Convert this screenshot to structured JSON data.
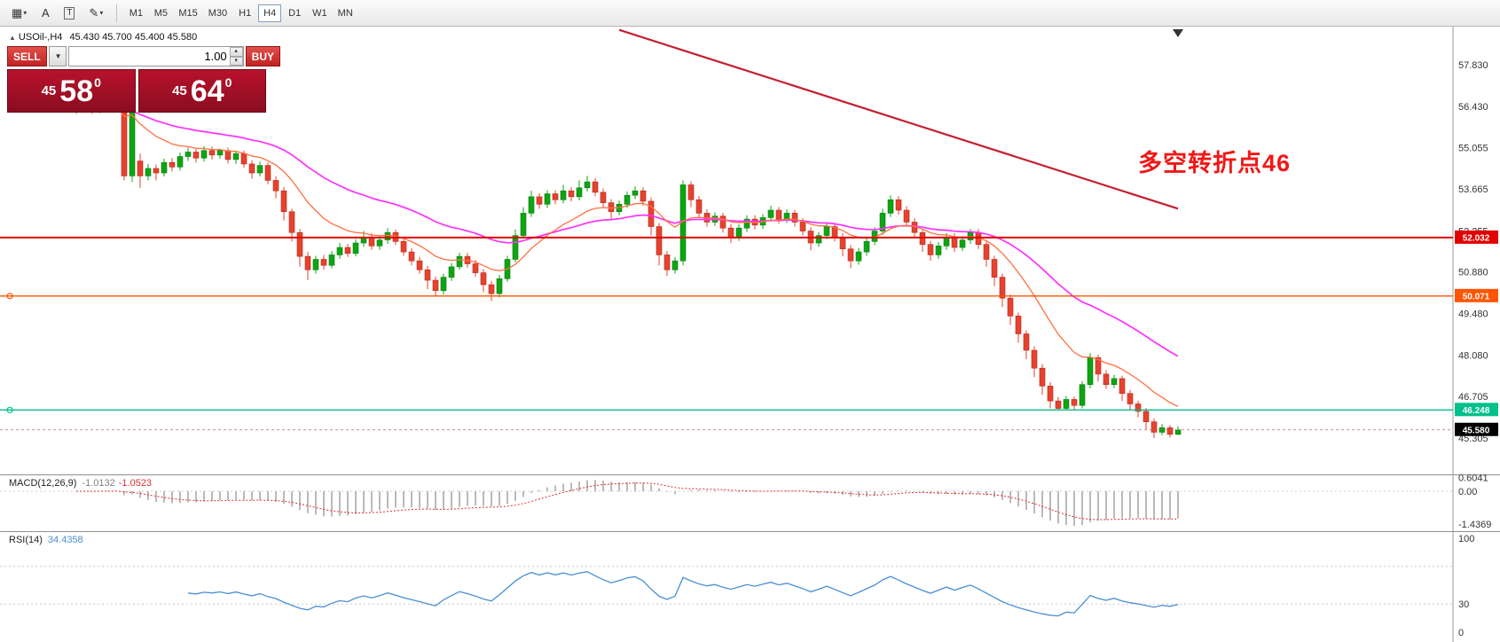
{
  "toolbar": {
    "icons": {
      "grid": "▦",
      "caret": "▾",
      "a": "A",
      "t": "T",
      "pencil": "✎"
    },
    "timeframes": [
      "M1",
      "M5",
      "M15",
      "M30",
      "H1",
      "H4",
      "D1",
      "W1",
      "MN"
    ],
    "active": "H4"
  },
  "trade": {
    "sell": "SELL",
    "buy": "BUY",
    "volume": "1.00",
    "caret_down": "▼",
    "spin_up": "▴",
    "spin_down": "▾",
    "sell_small": "45",
    "sell_big": "58",
    "sell_sup": "0",
    "buy_small": "45",
    "buy_big": "64",
    "buy_sup": "0"
  },
  "chart": {
    "symbol": "USOil-,H4",
    "ohlc": "45.430 45.700 45.400 45.580",
    "marker": "▲",
    "annotation": {
      "text": "多空转折点46",
      "color": "#f01818"
    },
    "axis_ticks": [
      "57.830",
      "56.430",
      "55.055",
      "53.665",
      "52.255",
      "50.880",
      "49.480",
      "48.080",
      "46.705",
      "45.305"
    ],
    "hlines": [
      {
        "price": 52.032,
        "label": "52.032",
        "color": "#e00000",
        "width": 2,
        "marker": false
      },
      {
        "price": 50.071,
        "label": "50.071",
        "color": "#ff5500",
        "width": 1.4,
        "marker": true
      },
      {
        "price": 46.248,
        "label": "46.248",
        "color": "#00c08b",
        "width": 1.4,
        "marker": true
      }
    ],
    "bid": {
      "price": 45.58,
      "label": "45.580",
      "bg": "#000000"
    },
    "trendline": {
      "from_index": 68,
      "from_price": 59.0,
      "to_index": 138,
      "to_price": 53.0,
      "color": "#c41f30"
    },
    "ma_fast": {
      "period": 13,
      "color": "#ff7040"
    },
    "ma_slow": {
      "period": 34,
      "color": "#ff30ff"
    },
    "up_color": "#0da512",
    "down_color": "#e6422e",
    "candles": [
      [
        56.3,
        56.55,
        56.18,
        56.4
      ],
      [
        56.4,
        56.65,
        56.28,
        56.52
      ],
      [
        56.52,
        56.6,
        56.18,
        56.3
      ],
      [
        56.3,
        56.58,
        56.2,
        56.45
      ],
      [
        56.45,
        56.75,
        56.32,
        56.62
      ],
      [
        56.62,
        56.9,
        56.25,
        56.38
      ],
      [
        56.38,
        56.5,
        53.95,
        54.1
      ],
      [
        54.1,
        56.45,
        53.9,
        56.35
      ],
      [
        54.6,
        54.85,
        53.7,
        54.1
      ],
      [
        54.1,
        54.5,
        53.95,
        54.35
      ],
      [
        54.35,
        54.48,
        53.95,
        54.2
      ],
      [
        54.2,
        54.68,
        54.08,
        54.55
      ],
      [
        54.55,
        54.7,
        54.25,
        54.4
      ],
      [
        54.4,
        54.88,
        54.28,
        54.75
      ],
      [
        54.75,
        55.05,
        54.6,
        54.9
      ],
      [
        54.9,
        55.0,
        54.55,
        54.7
      ],
      [
        54.7,
        55.1,
        54.58,
        54.95
      ],
      [
        54.95,
        55.08,
        54.65,
        54.8
      ],
      [
        54.8,
        55.02,
        54.68,
        54.95
      ],
      [
        54.95,
        55.05,
        54.52,
        54.65
      ],
      [
        54.65,
        54.95,
        54.5,
        54.85
      ],
      [
        54.85,
        54.95,
        54.38,
        54.5
      ],
      [
        54.5,
        54.62,
        54.0,
        54.2
      ],
      [
        54.2,
        54.58,
        54.08,
        54.45
      ],
      [
        54.45,
        54.55,
        53.82,
        53.95
      ],
      [
        53.95,
        54.08,
        53.35,
        53.6
      ],
      [
        53.6,
        53.72,
        52.6,
        52.9
      ],
      [
        52.9,
        53.0,
        51.9,
        52.2
      ],
      [
        52.2,
        52.32,
        51.05,
        51.4
      ],
      [
        51.4,
        51.55,
        50.6,
        50.95
      ],
      [
        50.95,
        51.42,
        50.82,
        51.3
      ],
      [
        51.3,
        51.45,
        50.95,
        51.1
      ],
      [
        51.1,
        51.58,
        51.0,
        51.45
      ],
      [
        51.45,
        51.85,
        51.32,
        51.7
      ],
      [
        51.7,
        51.82,
        51.38,
        51.5
      ],
      [
        51.5,
        51.98,
        51.4,
        51.85
      ],
      [
        51.85,
        52.25,
        51.72,
        52.05
      ],
      [
        52.05,
        52.18,
        51.62,
        51.75
      ],
      [
        51.75,
        52.08,
        51.62,
        51.95
      ],
      [
        51.95,
        52.35,
        51.82,
        52.2
      ],
      [
        52.2,
        52.3,
        51.78,
        51.9
      ],
      [
        51.9,
        52.02,
        51.42,
        51.55
      ],
      [
        51.55,
        51.68,
        51.1,
        51.25
      ],
      [
        51.25,
        51.38,
        50.82,
        50.95
      ],
      [
        50.95,
        51.08,
        50.3,
        50.6
      ],
      [
        50.6,
        50.72,
        50.05,
        50.25
      ],
      [
        50.25,
        50.82,
        50.12,
        50.7
      ],
      [
        50.7,
        51.18,
        50.58,
        51.05
      ],
      [
        51.05,
        51.52,
        50.95,
        51.4
      ],
      [
        51.4,
        51.52,
        51.02,
        51.15
      ],
      [
        51.15,
        51.28,
        50.72,
        50.85
      ],
      [
        50.85,
        50.98,
        50.2,
        50.45
      ],
      [
        50.45,
        50.58,
        49.9,
        50.15
      ],
      [
        50.15,
        50.78,
        50.02,
        50.65
      ],
      [
        50.65,
        51.42,
        50.55,
        51.3
      ],
      [
        51.3,
        52.3,
        51.2,
        52.1
      ],
      [
        52.1,
        53.05,
        52.0,
        52.85
      ],
      [
        52.85,
        53.6,
        52.72,
        53.4
      ],
      [
        53.4,
        53.52,
        53.0,
        53.15
      ],
      [
        53.15,
        53.62,
        53.02,
        53.5
      ],
      [
        53.5,
        53.62,
        53.15,
        53.3
      ],
      [
        53.3,
        53.8,
        53.18,
        53.6
      ],
      [
        53.6,
        53.72,
        53.25,
        53.4
      ],
      [
        53.4,
        53.95,
        53.28,
        53.7
      ],
      [
        53.7,
        54.1,
        53.58,
        53.9
      ],
      [
        53.9,
        54.02,
        53.42,
        53.55
      ],
      [
        53.55,
        53.68,
        53.05,
        53.2
      ],
      [
        53.2,
        53.32,
        52.65,
        52.9
      ],
      [
        52.9,
        53.28,
        52.78,
        53.15
      ],
      [
        53.15,
        53.58,
        53.02,
        53.45
      ],
      [
        53.45,
        53.75,
        53.32,
        53.6
      ],
      [
        53.6,
        53.72,
        53.1,
        53.25
      ],
      [
        53.25,
        53.38,
        52.1,
        52.4
      ],
      [
        52.4,
        52.52,
        51.1,
        51.45
      ],
      [
        51.45,
        51.58,
        50.75,
        50.95
      ],
      [
        50.95,
        51.38,
        50.82,
        51.25
      ],
      [
        51.25,
        53.95,
        51.1,
        53.8
      ],
      [
        53.8,
        53.92,
        53.05,
        53.3
      ],
      [
        53.3,
        53.42,
        52.7,
        52.85
      ],
      [
        52.85,
        52.98,
        52.4,
        52.55
      ],
      [
        52.55,
        52.88,
        52.42,
        52.75
      ],
      [
        52.75,
        52.86,
        52.2,
        52.35
      ],
      [
        52.35,
        52.48,
        51.85,
        52.05
      ],
      [
        52.05,
        52.48,
        51.92,
        52.35
      ],
      [
        52.35,
        52.78,
        52.22,
        52.65
      ],
      [
        52.65,
        52.78,
        52.3,
        52.45
      ],
      [
        52.45,
        52.82,
        52.32,
        52.7
      ],
      [
        52.7,
        53.1,
        52.58,
        52.95
      ],
      [
        52.95,
        53.06,
        52.5,
        52.65
      ],
      [
        52.65,
        52.98,
        52.52,
        52.85
      ],
      [
        52.85,
        52.96,
        52.4,
        52.55
      ],
      [
        52.55,
        52.68,
        52.1,
        52.25
      ],
      [
        52.25,
        52.38,
        51.6,
        51.85
      ],
      [
        51.85,
        52.22,
        51.72,
        52.1
      ],
      [
        52.1,
        52.52,
        51.98,
        52.4
      ],
      [
        52.4,
        52.52,
        51.9,
        52.05
      ],
      [
        52.05,
        52.18,
        51.4,
        51.65
      ],
      [
        51.65,
        51.78,
        51.0,
        51.25
      ],
      [
        51.25,
        51.68,
        51.12,
        51.55
      ],
      [
        51.55,
        52.02,
        51.42,
        51.9
      ],
      [
        51.9,
        52.38,
        51.78,
        52.25
      ],
      [
        52.25,
        53.0,
        52.12,
        52.85
      ],
      [
        52.85,
        53.45,
        52.72,
        53.3
      ],
      [
        53.3,
        53.42,
        52.8,
        52.95
      ],
      [
        52.95,
        53.08,
        52.4,
        52.55
      ],
      [
        52.55,
        52.68,
        52.05,
        52.2
      ],
      [
        52.2,
        52.32,
        51.55,
        51.8
      ],
      [
        51.8,
        51.92,
        51.25,
        51.45
      ],
      [
        51.45,
        51.88,
        51.32,
        51.75
      ],
      [
        51.75,
        52.18,
        51.62,
        52.05
      ],
      [
        52.05,
        52.18,
        51.55,
        51.7
      ],
      [
        51.7,
        52.08,
        51.58,
        51.95
      ],
      [
        51.95,
        52.32,
        51.82,
        52.2
      ],
      [
        52.2,
        52.32,
        51.65,
        51.8
      ],
      [
        51.8,
        51.92,
        51.05,
        51.3
      ],
      [
        51.3,
        51.42,
        50.4,
        50.7
      ],
      [
        50.7,
        50.82,
        49.7,
        50.0
      ],
      [
        50.0,
        50.12,
        49.1,
        49.4
      ],
      [
        49.4,
        49.52,
        48.5,
        48.8
      ],
      [
        48.8,
        48.92,
        47.95,
        48.25
      ],
      [
        48.25,
        48.38,
        47.35,
        47.65
      ],
      [
        47.65,
        47.78,
        46.75,
        47.05
      ],
      [
        47.05,
        47.18,
        46.3,
        46.55
      ],
      [
        46.55,
        46.68,
        46.25,
        46.3
      ],
      [
        46.3,
        46.72,
        46.22,
        46.6
      ],
      [
        46.6,
        46.7,
        46.25,
        46.4
      ],
      [
        46.4,
        47.22,
        46.3,
        47.1
      ],
      [
        47.1,
        48.15,
        46.98,
        48.0
      ],
      [
        48.0,
        48.1,
        47.2,
        47.45
      ],
      [
        47.45,
        47.58,
        46.95,
        47.1
      ],
      [
        47.1,
        47.42,
        46.98,
        47.3
      ],
      [
        47.3,
        47.4,
        46.55,
        46.8
      ],
      [
        46.8,
        46.92,
        46.25,
        46.45
      ],
      [
        46.45,
        46.56,
        46.0,
        46.2
      ],
      [
        46.2,
        46.32,
        45.6,
        45.85
      ],
      [
        45.85,
        45.96,
        45.31,
        45.5
      ],
      [
        45.5,
        45.78,
        45.4,
        45.65
      ],
      [
        45.65,
        45.74,
        45.32,
        45.43
      ],
      [
        45.43,
        45.7,
        45.4,
        45.58
      ]
    ]
  },
  "macd": {
    "name": "MACD(12,26,9)",
    "value_main": "-1.0132",
    "value_signal": "-1.0523",
    "axis": [
      "0.6041",
      "0.00",
      "-1.4369"
    ],
    "fast": 12,
    "slow": 26,
    "smooth": 9,
    "hist_color": "#a8a8a8",
    "signal_color": "#e03030"
  },
  "rsi": {
    "name": "RSI(14)",
    "value": "34.4358",
    "axis": [
      "100",
      "30",
      "0"
    ],
    "period": 14,
    "color": "#4a8fd4",
    "levels": [
      70,
      30
    ]
  }
}
